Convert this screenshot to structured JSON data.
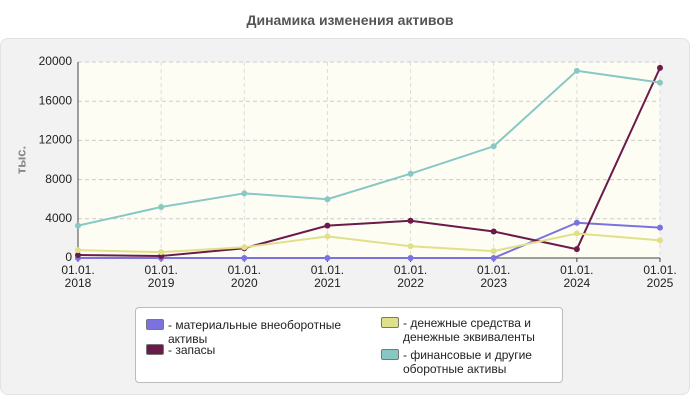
{
  "chart_data": {
    "type": "line",
    "title": "Динамика изменения активов",
    "y_label": "тыс.",
    "categories": [
      "01.01.\n2018",
      "01.01.\n2019",
      "01.01.\n2020",
      "01.01.\n2021",
      "01.01.\n2022",
      "01.01.\n2023",
      "01.01.\n2024",
      "01.01.\n2025"
    ],
    "series": [
      {
        "name": "- материальные внеоборотные активы",
        "color": "#7b72e0",
        "values": [
          0,
          0,
          0,
          0,
          0,
          0,
          3600,
          3100
        ]
      },
      {
        "name": "- запасы",
        "color": "#6b1a4a",
        "values": [
          300,
          200,
          1000,
          3300,
          3800,
          2700,
          900,
          19400
        ]
      },
      {
        "name": "- денежные средства и денежные эквиваленты",
        "color": "#e0e08a",
        "values": [
          800,
          600,
          1100,
          2200,
          1200,
          700,
          2500,
          1800
        ]
      },
      {
        "name": "- финансовые и другие оборотные активы",
        "color": "#88c8c4",
        "values": [
          3300,
          5200,
          6600,
          6000,
          8600,
          11400,
          19100,
          17900
        ]
      }
    ],
    "ylim": [
      0,
      20000
    ],
    "yticks": [
      0,
      4000,
      8000,
      12000,
      16000,
      20000
    ],
    "grid": true
  }
}
